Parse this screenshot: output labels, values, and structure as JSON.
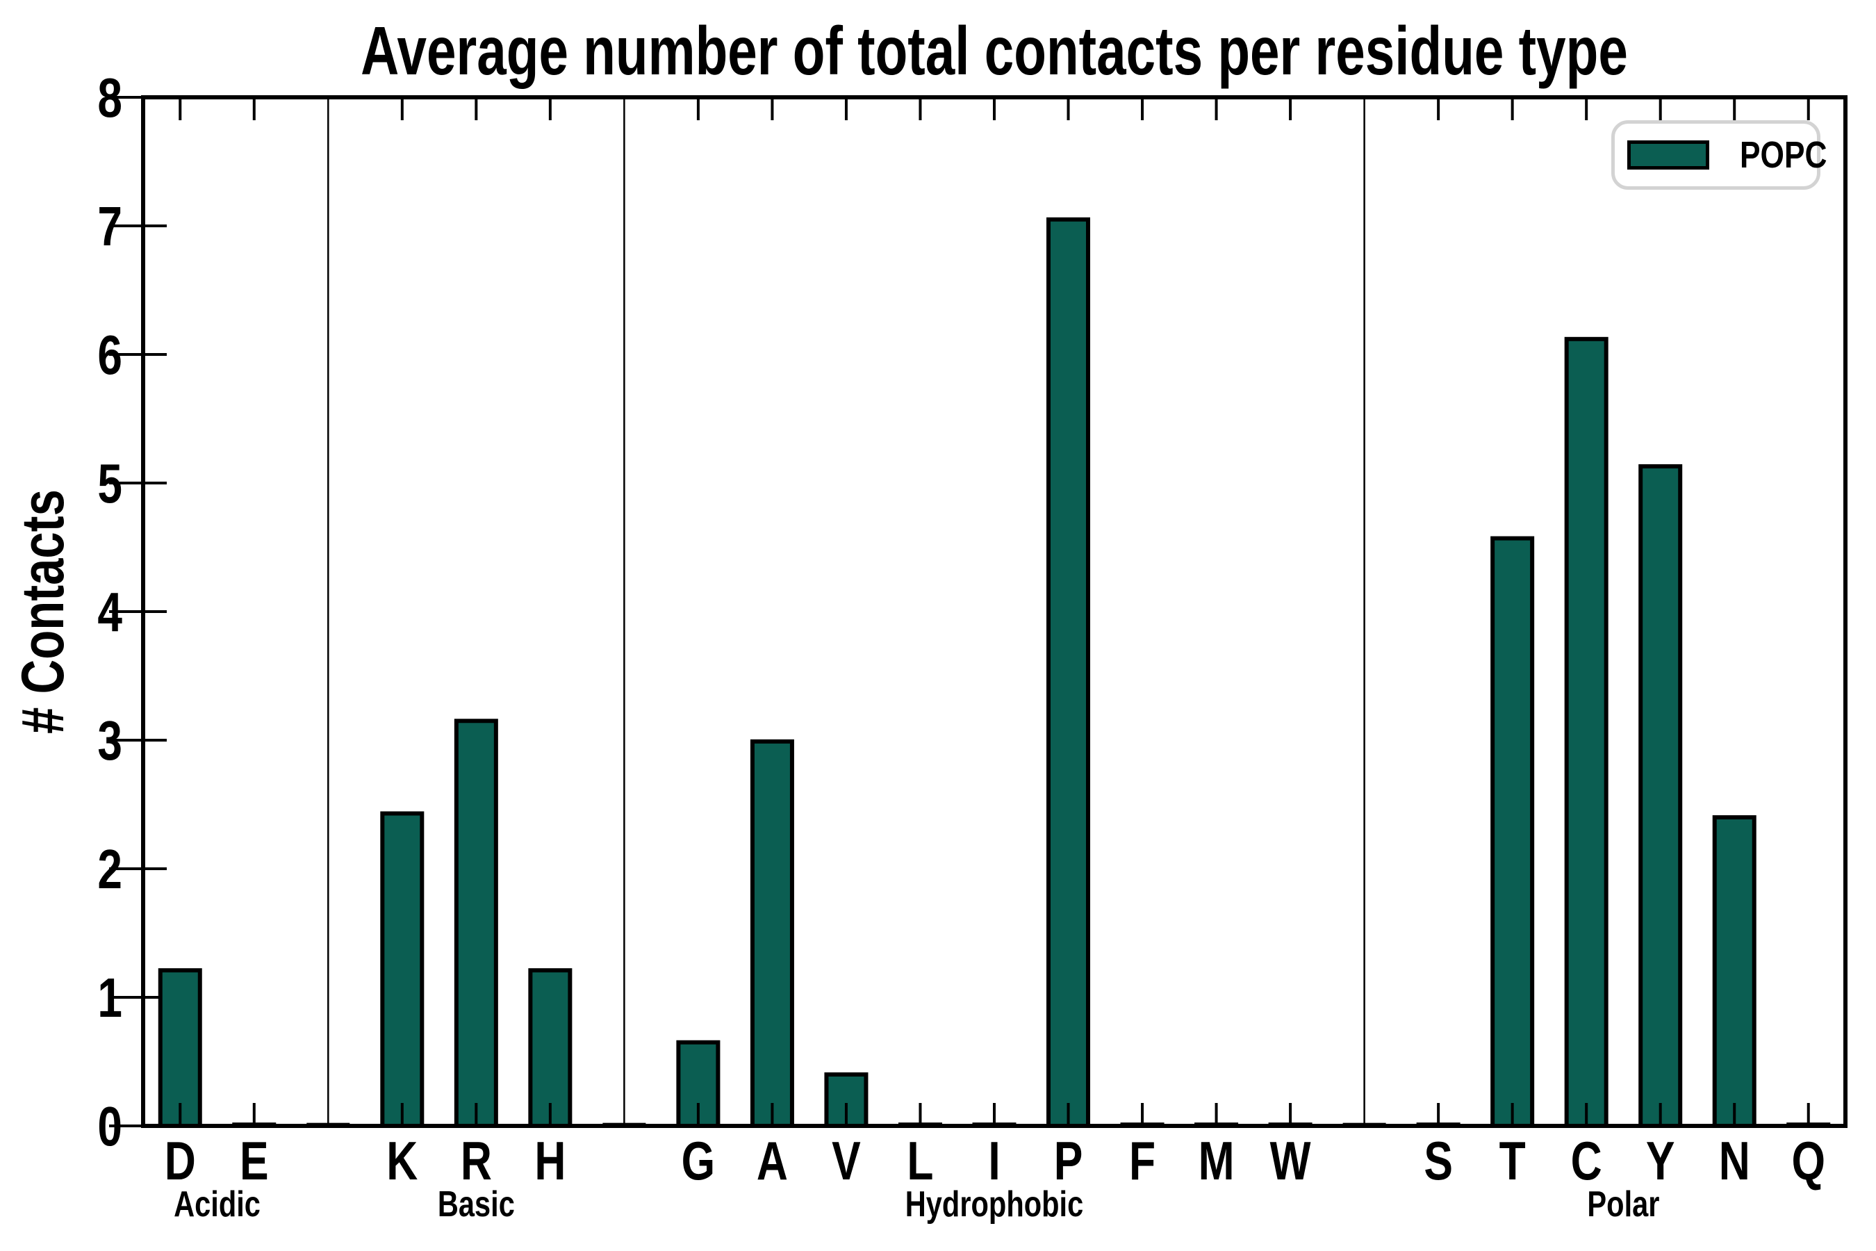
{
  "title": "Average number of total contacts per residue type",
  "y_axis_label": "# Contacts",
  "legend": {
    "label": "POPC"
  },
  "colors": {
    "bar_fill": "#0b5e52",
    "bar_edge": "#000000",
    "axis": "#000000",
    "legend_border": "#d3d3d3",
    "background": "#ffffff",
    "text": "#000000"
  },
  "chart_data": {
    "type": "bar",
    "title": "Average number of total contacts per residue type",
    "xlabel": "",
    "ylabel": "# Contacts",
    "ylim": [
      0,
      8
    ],
    "y_ticks": [
      0,
      1,
      2,
      3,
      4,
      5,
      6,
      7,
      8
    ],
    "grid": false,
    "legend_position": "upper right",
    "series_name": "POPC",
    "groups": [
      {
        "name": "Acidic",
        "categories": [
          "D",
          "E"
        ],
        "values": [
          1.21,
          0.01
        ]
      },
      {
        "name": "Basic",
        "categories": [
          "K",
          "R",
          "H"
        ],
        "values": [
          2.43,
          3.15,
          1.21
        ]
      },
      {
        "name": "Hydrophobic",
        "categories": [
          "G",
          "A",
          "V",
          "L",
          "I",
          "P",
          "F",
          "M",
          "W"
        ],
        "values": [
          0.65,
          2.99,
          0.4,
          0.01,
          0.01,
          7.05,
          0.01,
          0.01,
          0.01
        ]
      },
      {
        "name": "Polar",
        "categories": [
          "S",
          "T",
          "C",
          "Y",
          "N",
          "Q"
        ],
        "values": [
          0.01,
          4.57,
          6.12,
          5.13,
          2.4,
          0.01
        ]
      }
    ],
    "group_separator_slots": true,
    "gap_slots_have_zero_bars": true
  }
}
